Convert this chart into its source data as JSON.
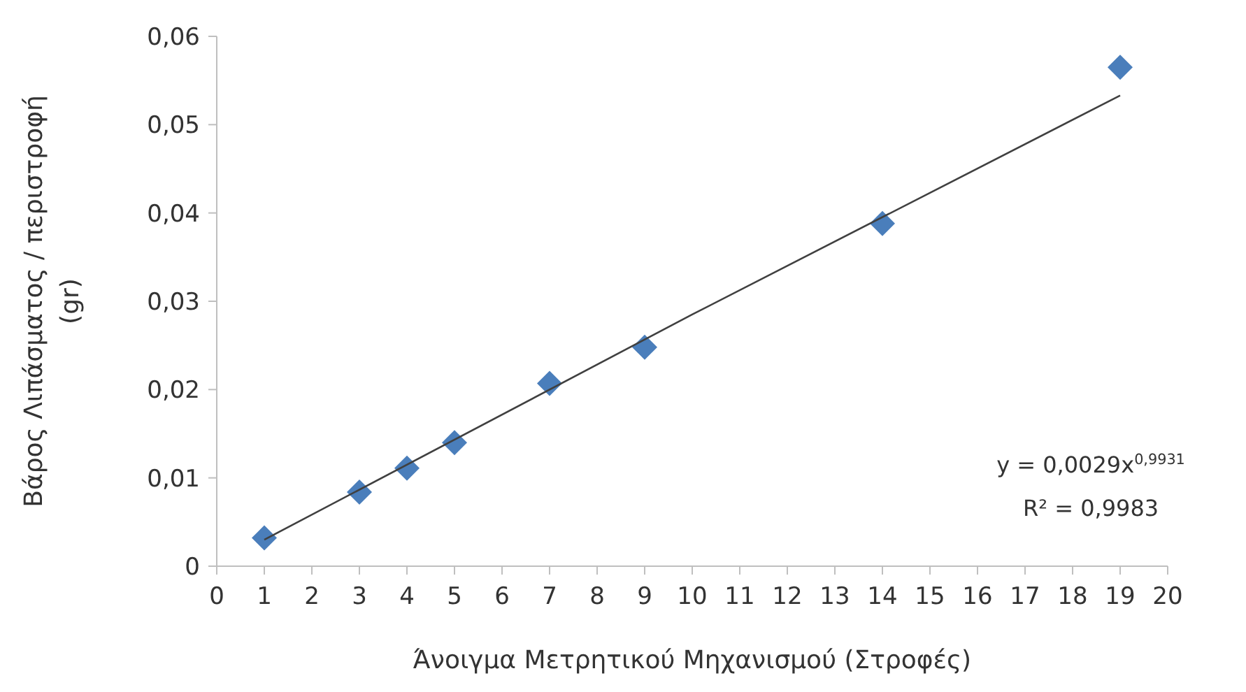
{
  "chart_data": {
    "type": "scatter",
    "xlabel": "Άνοιγμα Μετρητικού Μηχανισμού (Στροφές)",
    "ylabel": "Βάρος Λιπάσματος / περιστροφή (gr)",
    "xlim": [
      0,
      20
    ],
    "xticks": [
      0,
      1,
      2,
      3,
      4,
      5,
      6,
      7,
      8,
      9,
      10,
      11,
      12,
      13,
      14,
      15,
      16,
      17,
      18,
      19,
      20
    ],
    "ylim": [
      0,
      0.06
    ],
    "yticks": [
      0,
      {
        "value": 0.01,
        "label": "0,01"
      },
      {
        "value": 0.02,
        "label": "0,02"
      },
      {
        "value": 0.03,
        "label": "0,03"
      },
      {
        "value": 0.04,
        "label": "0,04"
      },
      {
        "value": 0.05,
        "label": "0,05"
      },
      {
        "value": 0.06,
        "label": "0,06"
      }
    ],
    "grid": false,
    "series": [
      {
        "color": "#4a7ebb",
        "marker": "diamond",
        "x": [
          1,
          3,
          4,
          5,
          7,
          9,
          14,
          19
        ],
        "values": [
          0.0032,
          0.0084,
          0.0111,
          0.014,
          0.0207,
          0.0248,
          0.0388,
          0.0565
        ]
      },
      {
        "type": "line",
        "color": "#404040",
        "marker": "none",
        "line_style": "solid",
        "x": [
          1,
          10,
          19
        ],
        "values": [
          0.003,
          0.0285,
          0.0533
        ]
      }
    ],
    "annotations": [
      "y = 0,0029x$^{0,9931}$",
      "R² = 0,9983"
    ]
  }
}
